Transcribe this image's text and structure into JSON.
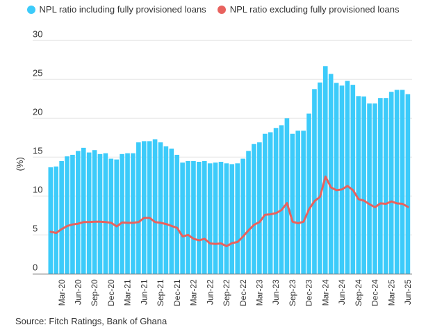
{
  "chart_data": {
    "type": "bar",
    "title": "",
    "xlabel": "",
    "ylabel": "(%)",
    "ylim": [
      0,
      30
    ],
    "yticks": [
      0,
      5,
      10,
      15,
      20,
      25,
      30
    ],
    "grid": true,
    "legend_position": "top-center",
    "categories": [
      "Jan-20",
      "Feb-20",
      "Mar-20",
      "Apr-20",
      "May-20",
      "Jun-20",
      "Jul-20",
      "Aug-20",
      "Sep-20",
      "Oct-20",
      "Nov-20",
      "Dec-20",
      "Jan-21",
      "Feb-21",
      "Mar-21",
      "Apr-21",
      "May-21",
      "Jun-21",
      "Jul-21",
      "Aug-21",
      "Sep-21",
      "Oct-21",
      "Nov-21",
      "Dec-21",
      "Jan-22",
      "Feb-22",
      "Mar-22",
      "Apr-22",
      "May-22",
      "Jun-22",
      "Jul-22",
      "Aug-22",
      "Sep-22",
      "Oct-22",
      "Nov-22",
      "Dec-22",
      "Jan-23",
      "Feb-23",
      "Mar-23",
      "Apr-23",
      "May-23",
      "Jun-23",
      "Jul-23",
      "Aug-23",
      "Sep-23",
      "Oct-23",
      "Nov-23",
      "Dec-23",
      "Jan-24",
      "Feb-24",
      "Mar-24",
      "Apr-24",
      "May-24",
      "Jun-24",
      "Jul-24",
      "Aug-24",
      "Sep-24",
      "Oct-24",
      "Nov-24",
      "Dec-24",
      "Jan-25",
      "Feb-25",
      "Mar-25",
      "Apr-25",
      "May-25",
      "Jun-25"
    ],
    "xtick_labels": [
      "Mar-20",
      "Jun-20",
      "Sep-20",
      "Dec-20",
      "Mar-21",
      "Jun-21",
      "Sep-21",
      "Dec-21",
      "Mar-22",
      "Jun-22",
      "Sep-22",
      "Dec-22",
      "Mar-23",
      "Jun-23",
      "Sep-23",
      "Dec-23",
      "Mar-24",
      "Jun-24",
      "Sep-24",
      "Dec-24",
      "Mar-25",
      "Jun-25"
    ],
    "series": [
      {
        "name": "NPL ratio including fully provisioned loans",
        "type": "bar",
        "color": "#3ccbfa",
        "values": [
          13.7,
          13.8,
          14.5,
          15.1,
          15.3,
          15.8,
          16.2,
          15.6,
          15.9,
          15.4,
          15.5,
          14.8,
          14.7,
          15.4,
          15.5,
          15.5,
          16.9,
          17.05,
          17.05,
          17.3,
          16.9,
          16.4,
          16.1,
          15.3,
          14.3,
          14.5,
          14.5,
          14.4,
          14.5,
          14.2,
          14.3,
          14.4,
          14.2,
          14.1,
          14.2,
          14.8,
          15.8,
          16.7,
          16.9,
          18.0,
          18.2,
          18.75,
          19.1,
          20.0,
          18.0,
          18.4,
          18.4,
          20.6,
          23.75,
          24.6,
          26.7,
          25.7,
          24.55,
          24.2,
          24.8,
          24.3,
          22.85,
          22.8,
          21.9,
          21.9,
          22.6,
          22.6,
          23.4,
          23.65,
          23.65,
          23.1
        ]
      },
      {
        "name": "NPL ratio excluding fully provisioned loans",
        "type": "line",
        "color": "#e8625e",
        "values": [
          5.4,
          5.25,
          5.75,
          6.15,
          6.35,
          6.45,
          6.65,
          6.65,
          6.7,
          6.7,
          6.65,
          6.55,
          6.1,
          6.6,
          6.55,
          6.55,
          6.65,
          7.2,
          7.2,
          6.65,
          6.55,
          6.4,
          6.15,
          5.9,
          4.8,
          5.0,
          4.5,
          4.3,
          4.5,
          3.9,
          3.85,
          3.9,
          3.55,
          3.95,
          4.1,
          4.8,
          5.6,
          6.3,
          6.65,
          7.6,
          7.65,
          7.8,
          8.2,
          9.1,
          6.7,
          6.5,
          6.7,
          8.3,
          9.35,
          9.9,
          12.5,
          11.1,
          10.75,
          10.85,
          11.3,
          10.75,
          9.6,
          9.4,
          8.95,
          8.55,
          9.05,
          9.0,
          9.3,
          9.05,
          9.0,
          8.6
        ]
      }
    ],
    "source": "Source: Fitch Ratings, Bank of Ghana"
  }
}
